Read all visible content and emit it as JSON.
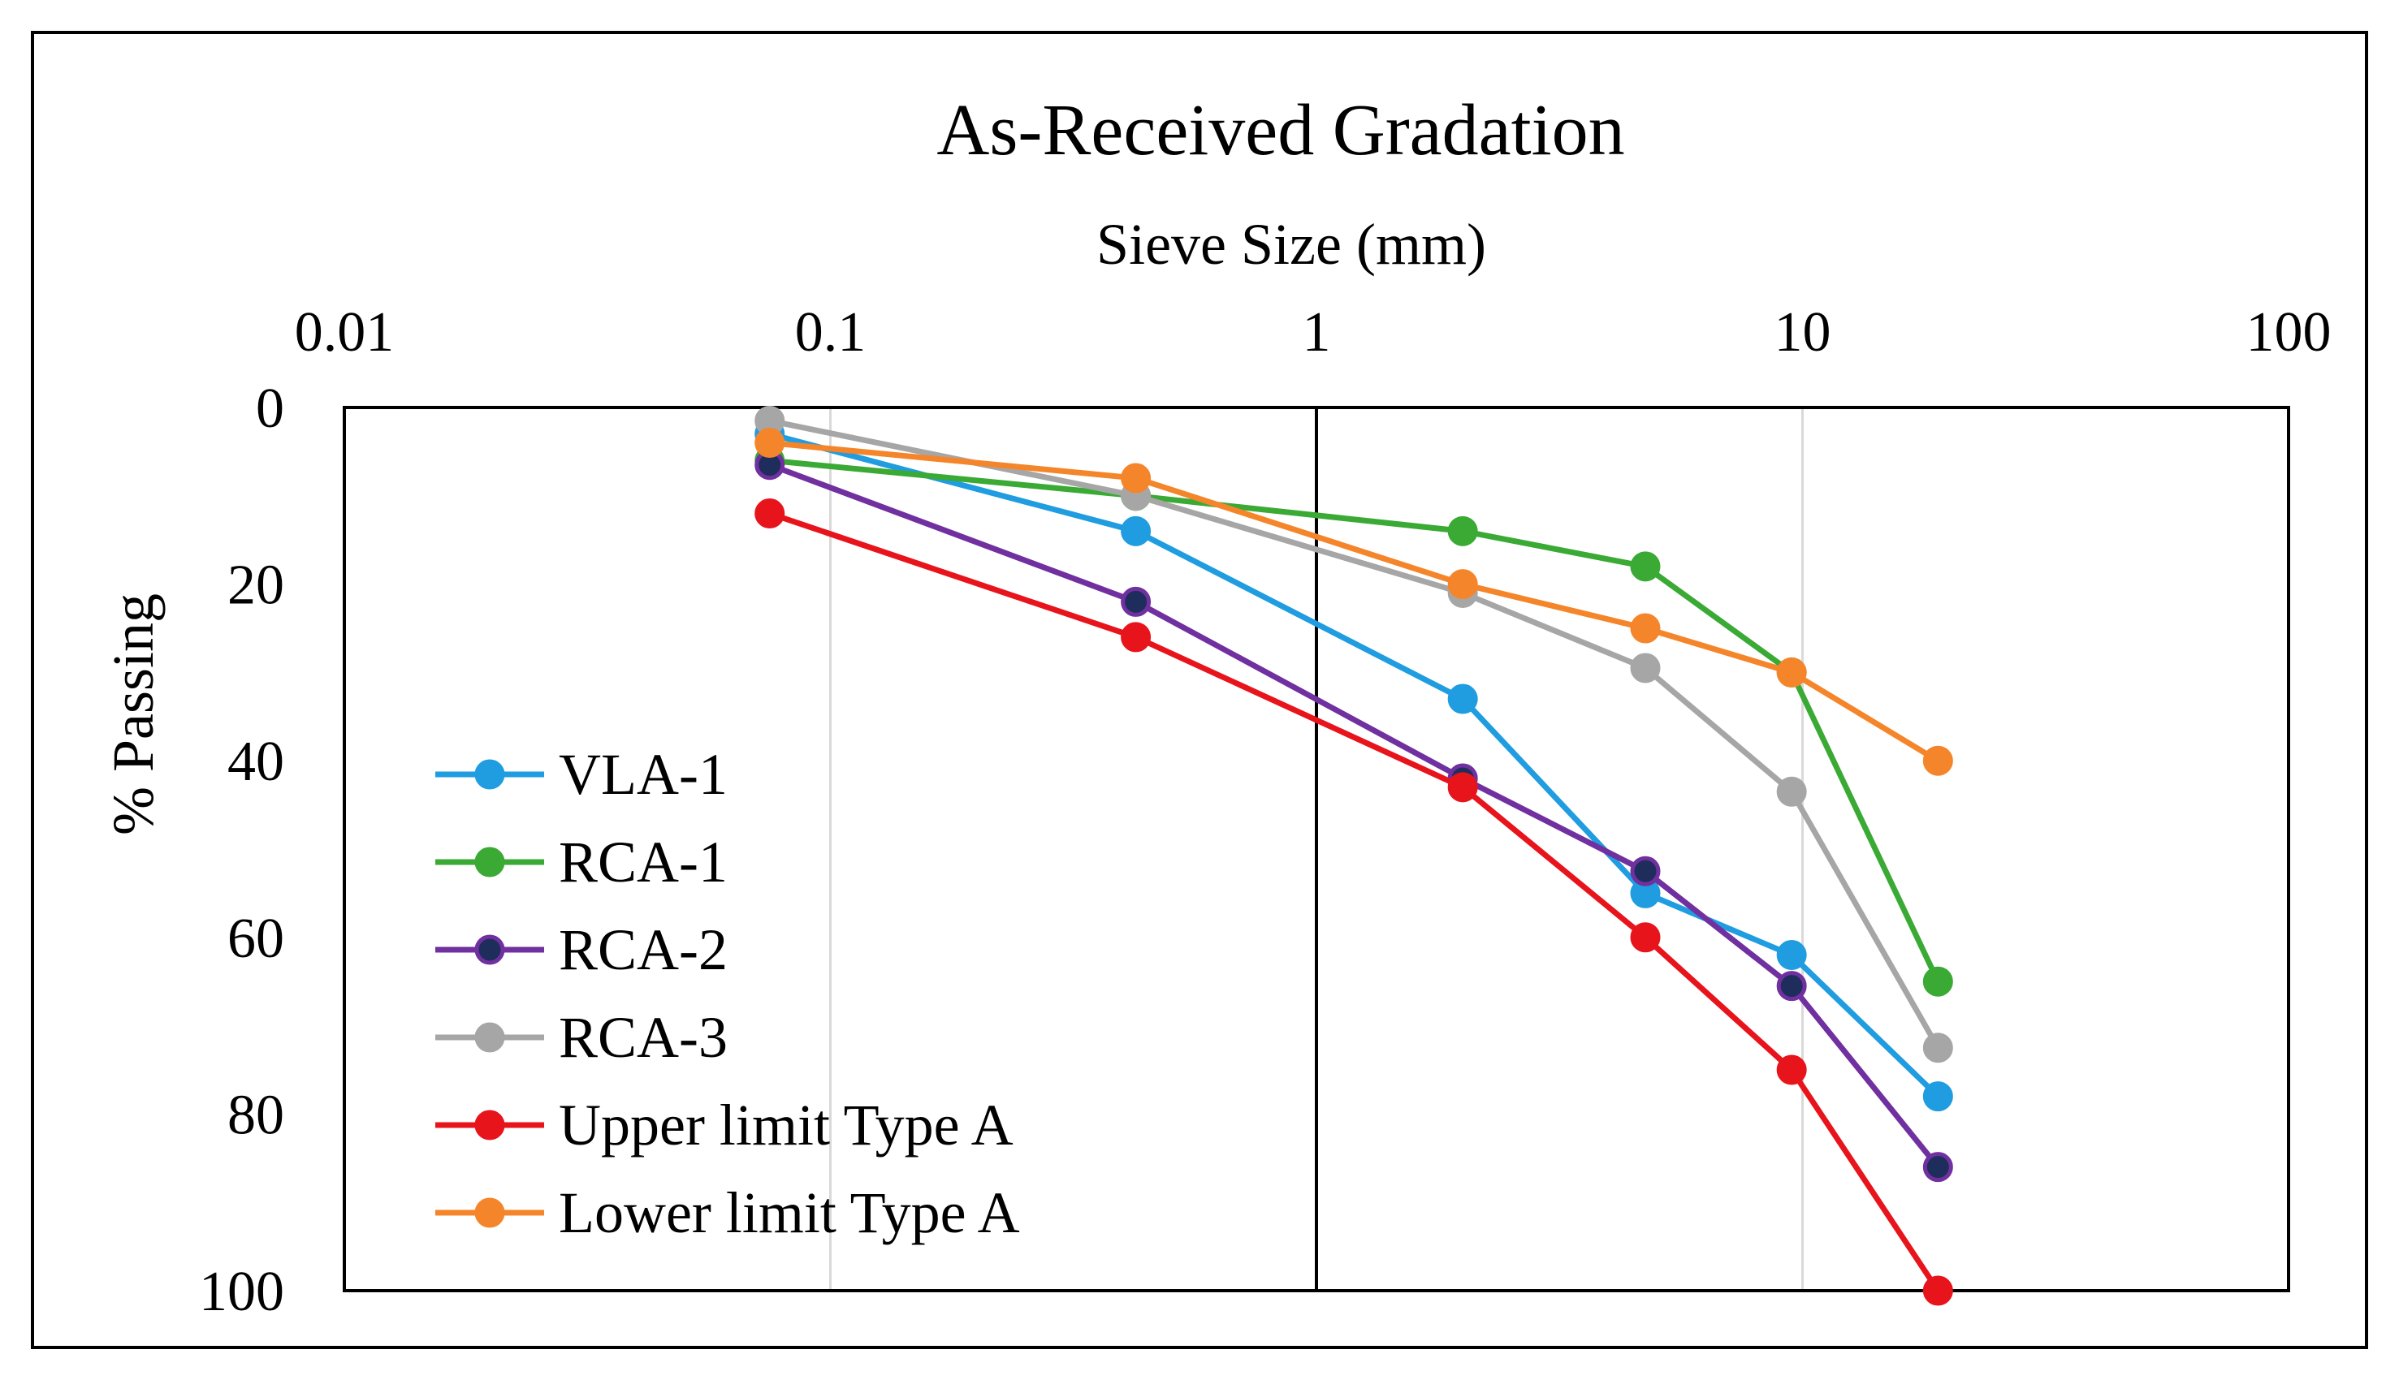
{
  "chart_data": {
    "type": "line",
    "title": "As-Received Gradation",
    "xlabel": "Sieve Size (mm)",
    "ylabel": "% Passing",
    "x_scale": "log",
    "xlim": [
      0.01,
      100
    ],
    "ylim": [
      0,
      100
    ],
    "y_inverted": true,
    "x_axis_position": "top",
    "legend_position": "bottom-left",
    "x_ticks": [
      "0.01",
      "0.1",
      "1",
      "10",
      "100"
    ],
    "y_ticks": [
      "0",
      "20",
      "40",
      "60",
      "80",
      "100"
    ],
    "x": [
      0.075,
      0.425,
      2.0,
      4.75,
      9.5,
      19.0
    ],
    "series": [
      {
        "name": "VLA-1",
        "color": "#1f9de0",
        "marker_fill": "#1f9de0",
        "values": [
          3,
          14,
          33,
          55,
          62,
          78
        ]
      },
      {
        "name": "RCA-1",
        "color": "#3aaa35",
        "marker_fill": "#3aaa35",
        "values": [
          6,
          10,
          14,
          18,
          30,
          65
        ]
      },
      {
        "name": "RCA-2",
        "color": "#7030a0",
        "marker_fill": "#1f2d5c",
        "values": [
          6.5,
          22,
          42,
          52.5,
          65.5,
          86
        ]
      },
      {
        "name": "RCA-3",
        "color": "#a6a6a6",
        "marker_fill": "#a6a6a6",
        "values": [
          1.5,
          10,
          21,
          29.5,
          43.5,
          72.5
        ]
      },
      {
        "name": "Upper limit Type A",
        "color": "#e8141c",
        "marker_fill": "#e8141c",
        "values": [
          12,
          26,
          43,
          60,
          75,
          100
        ]
      },
      {
        "name": "Lower limit Type A",
        "color": "#f5852a",
        "marker_fill": "#f5852a",
        "values": [
          4,
          8,
          20,
          25,
          30,
          40
        ]
      }
    ]
  }
}
